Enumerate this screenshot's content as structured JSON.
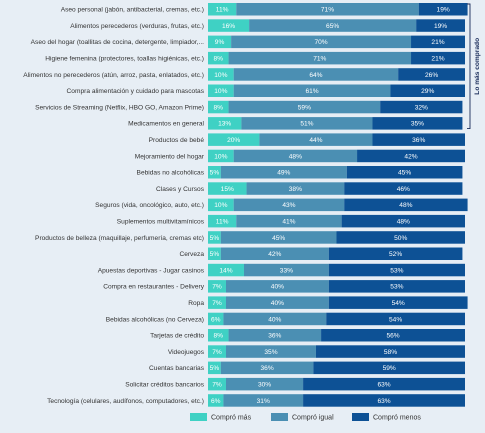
{
  "chart_data": {
    "type": "bar",
    "stacked": true,
    "orientation": "horizontal",
    "categories": [
      "Aseo personal (jabón, antibacterial, cremas, etc.)",
      "Alimentos perecederos (verduras, frutas, etc.)",
      "Aseo del hogar (toallitas de cocina, detergente, limpiador,...",
      "Higiene femenina (protectores, toallas higiénicas, etc.)",
      "Alimentos no perecederos (atún, arroz, pasta, enlatados, etc.)",
      "Compra alimentación y cuidado para mascotas",
      "Servicios de Streaming (Netflix, HBO GO, Amazon Prime)",
      "Medicamentos en general",
      "Productos de bebé",
      "Mejoramiento del hogar",
      "Bebidas no alcohólicas",
      "Clases y Cursos",
      "Seguros (vida, oncológico, auto, etc.)",
      "Suplementos multivitamínicos",
      "Productos de belleza (maquillaje, perfumería, cremas etc)",
      "Cerveza",
      "Apuestas deportivas - Jugar casinos",
      "Compra en restaurantes - Delivery",
      "Ropa",
      "Bebidas alcohólicas (no Cerveza)",
      "Tarjetas de crédito",
      "Videojuegos",
      "Cuentas bancarias",
      "Solicitar créditos bancarios",
      "Tecnología (celulares, audífonos, computadores, etc.)"
    ],
    "series": [
      {
        "name": "Compró más",
        "color": "#3fd1c4",
        "values": [
          11,
          16,
          9,
          8,
          10,
          10,
          8,
          13,
          20,
          10,
          5,
          15,
          10,
          11,
          5,
          5,
          14,
          7,
          7,
          6,
          8,
          7,
          5,
          7,
          6
        ]
      },
      {
        "name": "Compró igual",
        "color": "#4b8fb3",
        "values": [
          71,
          65,
          70,
          71,
          64,
          61,
          59,
          51,
          44,
          48,
          49,
          38,
          43,
          41,
          45,
          42,
          33,
          40,
          40,
          40,
          36,
          35,
          36,
          30,
          31
        ]
      },
      {
        "name": "Compró menos",
        "color": "#0d5195",
        "values": [
          19,
          19,
          21,
          21,
          26,
          29,
          32,
          35,
          36,
          42,
          45,
          46,
          48,
          48,
          50,
          52,
          53,
          53,
          54,
          54,
          56,
          58,
          59,
          63,
          63
        ]
      }
    ],
    "value_suffix": "%",
    "xlim": [
      0,
      100
    ],
    "grid": false,
    "legend_position": "bottom",
    "bracket": {
      "label": "Lo más comprado",
      "from_index": 0,
      "to_index": 7
    }
  }
}
